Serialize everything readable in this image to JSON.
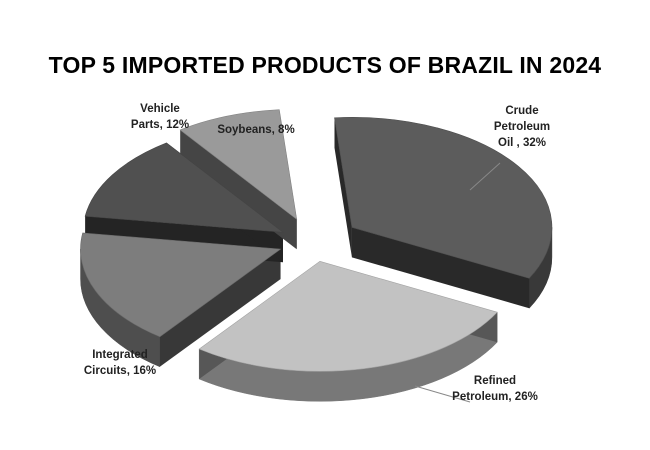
{
  "chart_data": {
    "type": "pie",
    "title": "TOP 5 IMPORTED PRODUCTS OF BRAZIL IN 2024",
    "slices": [
      {
        "label_lines": [
          "Crude",
          "Petroleum",
          "Oil , 32%"
        ],
        "category": "Crude Petroleum Oil",
        "value": 32,
        "color": "#5c5c5c"
      },
      {
        "label_lines": [
          "Refined",
          "Petroleum, 26%"
        ],
        "category": "Refined Petroleum",
        "value": 26,
        "color": "#c2c2c2"
      },
      {
        "label_lines": [
          "Integrated",
          "Circuits, 16%"
        ],
        "category": "Integrated Circuits",
        "value": 16,
        "color": "#7d7d7d"
      },
      {
        "label_lines": [
          "Vehicle",
          "Parts, 12%"
        ],
        "category": "Vehicle Parts",
        "value": 12,
        "color": "#505050"
      },
      {
        "label_lines": [
          "Soybeans, 8%"
        ],
        "category": "Soybeans",
        "value": 8,
        "color": "#9a9a9a"
      }
    ],
    "style": "3d-exploded",
    "legend": "none"
  }
}
